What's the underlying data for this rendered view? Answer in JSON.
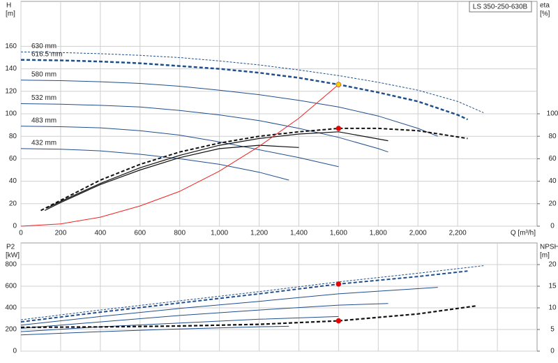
{
  "chart_data": [
    {
      "type": "line",
      "model_label": "LS 350-250-630B",
      "ylabel": "H",
      "yunit": "[m]",
      "y2label": "eta",
      "y2unit": "[%]",
      "xlabel": "Q [m³/h]",
      "xlim": [
        0,
        2600
      ],
      "xticks": [
        0,
        200,
        400,
        600,
        800,
        {
          "value": 1000,
          "label": "1,000"
        },
        {
          "value": 1200,
          "label": "1,200"
        },
        {
          "value": 1400,
          "label": "1,400"
        },
        {
          "value": 1600,
          "label": "1,600"
        },
        {
          "value": 1800,
          "label": "1,800"
        },
        {
          "value": 2000,
          "label": "2,000"
        },
        {
          "value": 2200,
          "label": "2,200"
        }
      ],
      "ylim": [
        0,
        200
      ],
      "yticks": [
        0,
        20,
        40,
        60,
        80,
        100,
        120,
        140,
        160
      ],
      "y2lim": [
        0,
        200
      ],
      "y2ticks": [
        0,
        20,
        40,
        60,
        80,
        100
      ],
      "grid": true,
      "series": [
        {
          "name": "630 mm",
          "color": "#1f4e8c",
          "line_style": "dashed",
          "line_width": 1,
          "x": [
            0,
            200,
            400,
            600,
            800,
            1000,
            1200,
            1400,
            1600,
            1800,
            2000,
            2200,
            2330
          ],
          "values": [
            155,
            154.5,
            153.5,
            152,
            150,
            147,
            143.5,
            139,
            134,
            128,
            121,
            111,
            101
          ]
        },
        {
          "name": "616.5 mm",
          "color": "#1f4e8c",
          "line_style": "dashed",
          "line_width": 2.5,
          "x": [
            0,
            200,
            400,
            600,
            800,
            1000,
            1200,
            1400,
            1600,
            1800,
            2000,
            2200,
            2250
          ],
          "values": [
            148,
            147.5,
            146.5,
            145,
            142.5,
            140,
            136.5,
            132,
            126,
            119,
            111,
            99,
            95
          ]
        },
        {
          "name": "580 mm",
          "color": "#1f4e8c",
          "line_style": "solid",
          "line_width": 1,
          "x": [
            0,
            200,
            400,
            600,
            800,
            1000,
            1200,
            1400,
            1600,
            1800,
            2000,
            2100
          ],
          "values": [
            130,
            129.5,
            128.5,
            127,
            124.5,
            121,
            117,
            112,
            106,
            98,
            87,
            80
          ]
        },
        {
          "name": "532 mm",
          "color": "#1f4e8c",
          "line_style": "solid",
          "line_width": 1,
          "x": [
            0,
            200,
            400,
            600,
            800,
            1000,
            1200,
            1400,
            1600,
            1800,
            1850
          ],
          "values": [
            109,
            108.5,
            107.5,
            106,
            103,
            99,
            94,
            87,
            79,
            69,
            66
          ]
        },
        {
          "name": "483 mm",
          "color": "#1f4e8c",
          "line_style": "solid",
          "line_width": 1,
          "x": [
            0,
            200,
            400,
            600,
            800,
            1000,
            1200,
            1400,
            1600
          ],
          "values": [
            89,
            88.5,
            87.5,
            85,
            81,
            75,
            68,
            61,
            53
          ]
        },
        {
          "name": "432 mm",
          "color": "#1f4e8c",
          "line_style": "solid",
          "line_width": 1,
          "x": [
            0,
            200,
            400,
            600,
            800,
            1000,
            1200,
            1350
          ],
          "values": [
            69,
            68.5,
            67,
            64,
            60,
            55,
            48,
            41
          ]
        },
        {
          "color": "#111111",
          "line_style": "dashed",
          "line_width": 2,
          "axis": "y2",
          "x": [
            100,
            200,
            400,
            600,
            800,
            1000,
            1200,
            1400,
            1600,
            1800,
            2000,
            2250
          ],
          "values": [
            14,
            23,
            41,
            55,
            66,
            74,
            80,
            84,
            87,
            87,
            85,
            78
          ]
        },
        {
          "color": "#111111",
          "line_style": "solid",
          "line_width": 1.2,
          "axis": "y2",
          "x": [
            130,
            200,
            400,
            600,
            800,
            1000,
            1200,
            1400,
            1600,
            1850
          ],
          "values": [
            16,
            22,
            38,
            52,
            63,
            72,
            78,
            82,
            84,
            76
          ]
        },
        {
          "color": "#111111",
          "line_style": "solid",
          "line_width": 1.2,
          "axis": "y2",
          "x": [
            120,
            200,
            400,
            600,
            800,
            1000,
            1200,
            1400
          ],
          "values": [
            14,
            21,
            37,
            50,
            61,
            69,
            72,
            70
          ]
        },
        {
          "color": "#ee2222",
          "line_style": "solid",
          "line_width": 1,
          "x": [
            0,
            200,
            400,
            600,
            800,
            1000,
            1200,
            1400,
            1600
          ],
          "values": [
            0,
            2,
            8,
            18,
            31,
            49,
            71,
            96,
            126
          ]
        }
      ],
      "points": [
        {
          "x": 1600,
          "y": 126,
          "color": "#f5d000"
        },
        {
          "x": 1600,
          "y": 87,
          "axis": "y2",
          "color": "#ee0000"
        }
      ]
    },
    {
      "type": "line",
      "ylabel": "P2",
      "yunit": "[kW]",
      "y2label": "NPSH",
      "y2unit": "[m]",
      "xlim": [
        0,
        2600
      ],
      "xticks": [
        0,
        200,
        400,
        600,
        800,
        1000,
        1200,
        1400,
        1600,
        1800,
        2000,
        2200,
        2400
      ],
      "ylim": [
        0,
        1000
      ],
      "yticks": [
        0,
        200,
        400,
        600,
        800
      ],
      "y2lim": [
        0,
        25
      ],
      "y2ticks": [
        0,
        5,
        10,
        15,
        20
      ],
      "grid": true,
      "series": [
        {
          "color": "#1f4e8c",
          "line_style": "dashed",
          "line_width": 1,
          "x": [
            0,
            400,
            800,
            1200,
            1600,
            2000,
            2330
          ],
          "values": [
            290,
            380,
            465,
            550,
            640,
            720,
            790
          ]
        },
        {
          "color": "#1f4e8c",
          "line_style": "dashed",
          "line_width": 2,
          "x": [
            0,
            400,
            800,
            1200,
            1600,
            2000,
            2250
          ],
          "values": [
            270,
            360,
            445,
            530,
            620,
            690,
            740
          ]
        },
        {
          "color": "#1f4e8c",
          "line_style": "solid",
          "line_width": 1,
          "x": [
            0,
            400,
            800,
            1200,
            1600,
            2100
          ],
          "values": [
            240,
            320,
            395,
            460,
            530,
            590
          ]
        },
        {
          "color": "#1f4e8c",
          "line_style": "solid",
          "line_width": 1,
          "x": [
            0,
            400,
            800,
            1200,
            1600,
            1850
          ],
          "values": [
            210,
            270,
            330,
            380,
            425,
            440
          ]
        },
        {
          "color": "#1f4e8c",
          "line_style": "solid",
          "line_width": 1,
          "x": [
            0,
            400,
            800,
            1200,
            1600
          ],
          "values": [
            180,
            225,
            260,
            295,
            320
          ]
        },
        {
          "color": "#1f4e8c",
          "line_style": "solid",
          "line_width": 1,
          "x": [
            0,
            400,
            800,
            1200,
            1350
          ],
          "values": [
            150,
            180,
            205,
            225,
            230
          ]
        },
        {
          "color": "#111111",
          "line_style": "dashed",
          "line_width": 2.2,
          "axis": "y2",
          "x": [
            0,
            400,
            800,
            1200,
            1600,
            2000,
            2300
          ],
          "values": [
            5.5,
            5.6,
            5.8,
            6.2,
            7,
            8.6,
            10.5
          ]
        }
      ],
      "points": [
        {
          "x": 1600,
          "y": 620,
          "color": "#ee0000"
        },
        {
          "x": 1600,
          "y": 7,
          "axis": "y2",
          "color": "#ee0000"
        }
      ]
    }
  ]
}
